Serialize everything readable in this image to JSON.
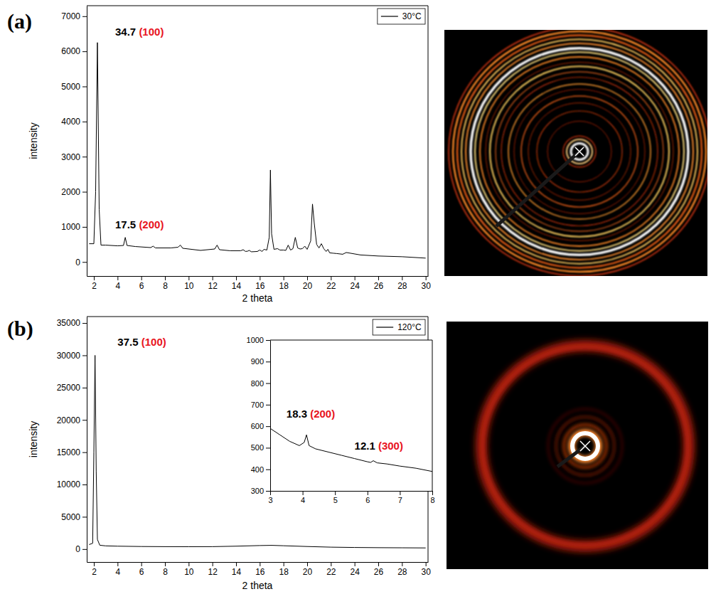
{
  "chart_data": [
    {
      "panel": "(a)",
      "type": "line",
      "xlabel": "2 theta",
      "ylabel": "intensity",
      "legend": "upper right",
      "x": [
        1.6,
        2.0,
        2.15,
        2.3,
        2.45,
        2.6,
        3.0,
        4.0,
        4.5,
        4.65,
        4.8,
        5.5,
        6.8,
        7.0,
        7.2,
        8.5,
        9.1,
        9.3,
        9.5,
        11.0,
        12.2,
        12.4,
        12.6,
        13.5,
        14.4,
        14.6,
        14.8,
        15.0,
        15.1,
        15.3,
        15.8,
        16.0,
        16.2,
        16.35,
        16.6,
        16.8,
        16.9,
        17.0,
        17.2,
        17.5,
        17.7,
        18.0,
        18.2,
        18.4,
        18.6,
        18.8,
        19.0,
        19.2,
        19.4,
        19.6,
        19.8,
        20.0,
        20.3,
        20.45,
        20.6,
        20.8,
        21.0,
        21.2,
        21.4,
        21.6,
        21.75,
        21.9,
        22.2,
        22.5,
        23.0,
        23.3,
        24.5,
        26,
        28,
        30
      ],
      "series": [
        {
          "name": "30°C",
          "color": "#000000",
          "values": [
            520,
            520,
            2000,
            6250,
            1500,
            480,
            480,
            460,
            470,
            700,
            470,
            440,
            410,
            450,
            400,
            400,
            420,
            480,
            390,
            330,
            370,
            480,
            350,
            320,
            320,
            350,
            300,
            310,
            330,
            290,
            300,
            340,
            300,
            360,
            340,
            700,
            2620,
            800,
            360,
            380,
            340,
            340,
            330,
            480,
            340,
            380,
            700,
            400,
            370,
            380,
            450,
            360,
            600,
            1650,
            1100,
            500,
            400,
            520,
            380,
            300,
            360,
            260,
            250,
            240,
            220,
            270,
            200,
            170,
            150,
            110
          ]
        }
      ],
      "xlim": [
        1.4,
        30.2
      ],
      "xticks": [
        2,
        4,
        6,
        8,
        10,
        12,
        14,
        16,
        18,
        20,
        22,
        24,
        26,
        28,
        30
      ],
      "ylim": [
        -400,
        7300
      ],
      "yticks": [
        0,
        1000,
        2000,
        3000,
        4000,
        5000,
        6000,
        7000
      ],
      "annotations": [
        {
          "text": "34.7",
          "label": "(100)",
          "x": 3.8,
          "y": 6450
        },
        {
          "text": "17.5",
          "label": "(200)",
          "x": 3.8,
          "y": 950
        }
      ]
    },
    {
      "panel": "(b)",
      "type": "line",
      "xlabel": "2 theta",
      "ylabel": "intensity",
      "legend": "upper right",
      "x": [
        1.6,
        1.9,
        2.0,
        2.1,
        2.2,
        2.3,
        2.5,
        3.0,
        4.0,
        6,
        8,
        10,
        12,
        14,
        16,
        17,
        18,
        20,
        22,
        24,
        26,
        28,
        30
      ],
      "series": [
        {
          "name": "120°C",
          "color": "#000000",
          "values": [
            700,
            900,
            15000,
            30000,
            12000,
            1500,
            600,
            500,
            450,
            400,
            380,
            370,
            380,
            450,
            550,
            580,
            520,
            400,
            300,
            250,
            220,
            200,
            180
          ]
        }
      ],
      "xlim": [
        1.4,
        30.2
      ],
      "xticks": [
        2,
        4,
        6,
        8,
        10,
        12,
        14,
        16,
        18,
        20,
        22,
        24,
        26,
        28,
        30
      ],
      "ylim": [
        -2000,
        36000
      ],
      "yticks": [
        0,
        5000,
        10000,
        15000,
        20000,
        25000,
        30000,
        35000
      ],
      "annotations": [
        {
          "text": "37.5",
          "label": "(100)",
          "x": 4.0,
          "y": 31500
        }
      ]
    },
    {
      "type": "line",
      "x": [
        3.0,
        3.3,
        3.6,
        3.9,
        4.05,
        4.12,
        4.2,
        4.4,
        4.8,
        5.2,
        5.6,
        6.0,
        6.1,
        6.18,
        6.3,
        6.6,
        7.0,
        7.5,
        8.0
      ],
      "series": [
        {
          "color": "#000000",
          "values": [
            590,
            560,
            530,
            510,
            525,
            560,
            510,
            495,
            480,
            465,
            450,
            435,
            432,
            440,
            430,
            425,
            415,
            405,
            390
          ]
        }
      ],
      "xlim": [
        3,
        8
      ],
      "xticks": [
        3,
        4,
        5,
        6,
        7,
        8
      ],
      "ylim": [
        300,
        1000
      ],
      "yticks": [
        300,
        400,
        500,
        600,
        700,
        800,
        900,
        1000
      ],
      "annotations": [
        {
          "text": "18.3",
          "label": "(200)",
          "x": 3.5,
          "y": 640
        },
        {
          "text": "12.1",
          "label": "(300)",
          "x": 5.6,
          "y": 490
        }
      ]
    }
  ]
}
